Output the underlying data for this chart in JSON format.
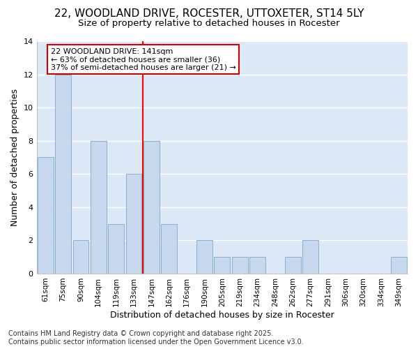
{
  "title": "22, WOODLAND DRIVE, ROCESTER, UTTOXETER, ST14 5LY",
  "subtitle": "Size of property relative to detached houses in Rocester",
  "xlabel": "Distribution of detached houses by size in Rocester",
  "ylabel": "Number of detached properties",
  "categories": [
    "61sqm",
    "75sqm",
    "90sqm",
    "104sqm",
    "119sqm",
    "133sqm",
    "147sqm",
    "162sqm",
    "176sqm",
    "190sqm",
    "205sqm",
    "219sqm",
    "234sqm",
    "248sqm",
    "262sqm",
    "277sqm",
    "291sqm",
    "306sqm",
    "320sqm",
    "334sqm",
    "349sqm"
  ],
  "values": [
    7,
    12,
    2,
    8,
    3,
    6,
    8,
    3,
    0,
    2,
    1,
    1,
    1,
    0,
    1,
    2,
    0,
    0,
    0,
    0,
    1
  ],
  "bar_color": "#c8d8ec",
  "bar_edge_color": "#8aafd4",
  "red_line_x": 5.5,
  "annotation_text": "22 WOODLAND DRIVE: 141sqm\n← 63% of detached houses are smaller (36)\n37% of semi-detached houses are larger (21) →",
  "annotation_box_facecolor": "#ffffff",
  "annotation_box_edgecolor": "#cc0000",
  "footer_line1": "Contains HM Land Registry data © Crown copyright and database right 2025.",
  "footer_line2": "Contains public sector information licensed under the Open Government Licence v3.0.",
  "ylim": [
    0,
    14
  ],
  "yticks": [
    0,
    2,
    4,
    6,
    8,
    10,
    12,
    14
  ],
  "plot_bg_color": "#dce8f5",
  "fig_bg_color": "#ffffff",
  "grid_color": "#ffffff",
  "title_fontsize": 11,
  "subtitle_fontsize": 9.5,
  "ylabel_fontsize": 9,
  "xlabel_fontsize": 9,
  "tick_fontsize": 7.5,
  "annot_fontsize": 8,
  "footer_fontsize": 7
}
